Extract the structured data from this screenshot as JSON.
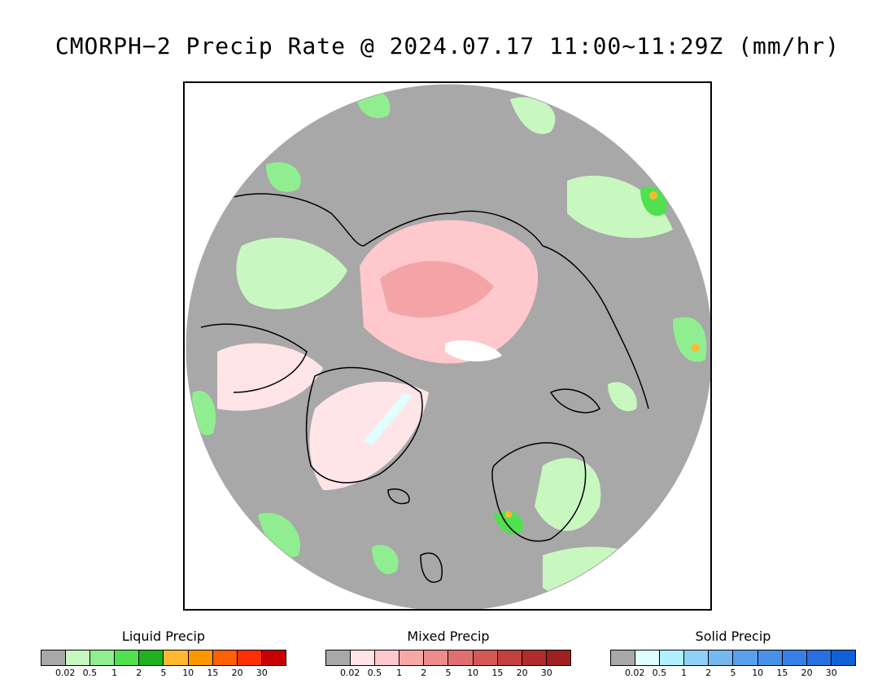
{
  "title": "CMORPH−2 Precip Rate @ 2024.07.17 11:00~11:29Z (mm/hr)",
  "map": {
    "projection": "north polar stereographic",
    "land_outline_color": "#000000",
    "background_color": "#a8a8a8"
  },
  "legends": [
    {
      "id": "liquid",
      "title": "Liquid Precip",
      "colors": [
        "#a8a8a8",
        "#c8f8c0",
        "#90ee90",
        "#50e050",
        "#20b020",
        "#ffb830",
        "#ff9800",
        "#ff6000",
        "#ff3000",
        "#c80000"
      ],
      "ticks": [
        "0.02",
        "0.5",
        "1",
        "2",
        "5",
        "10",
        "15",
        "20",
        "30"
      ]
    },
    {
      "id": "mixed",
      "title": "Mixed Precip",
      "colors": [
        "#a8a8a8",
        "#ffe4e8",
        "#ffc8cc",
        "#f4a8a8",
        "#ec8c8c",
        "#e07070",
        "#d45858",
        "#c44040",
        "#b02c2c",
        "#a02020"
      ],
      "ticks": [
        "0.02",
        "0.5",
        "1",
        "2",
        "5",
        "10",
        "15",
        "20",
        "30"
      ]
    },
    {
      "id": "solid",
      "title": "Solid Precip",
      "colors": [
        "#a8a8a8",
        "#e0ffff",
        "#b0f0ff",
        "#90d0f8",
        "#78b8f0",
        "#58a0ec",
        "#4890e8",
        "#3880e8",
        "#2870e0",
        "#1060d8"
      ],
      "ticks": [
        "0.02",
        "0.5",
        "1",
        "2",
        "5",
        "10",
        "15",
        "20",
        "30"
      ]
    }
  ]
}
